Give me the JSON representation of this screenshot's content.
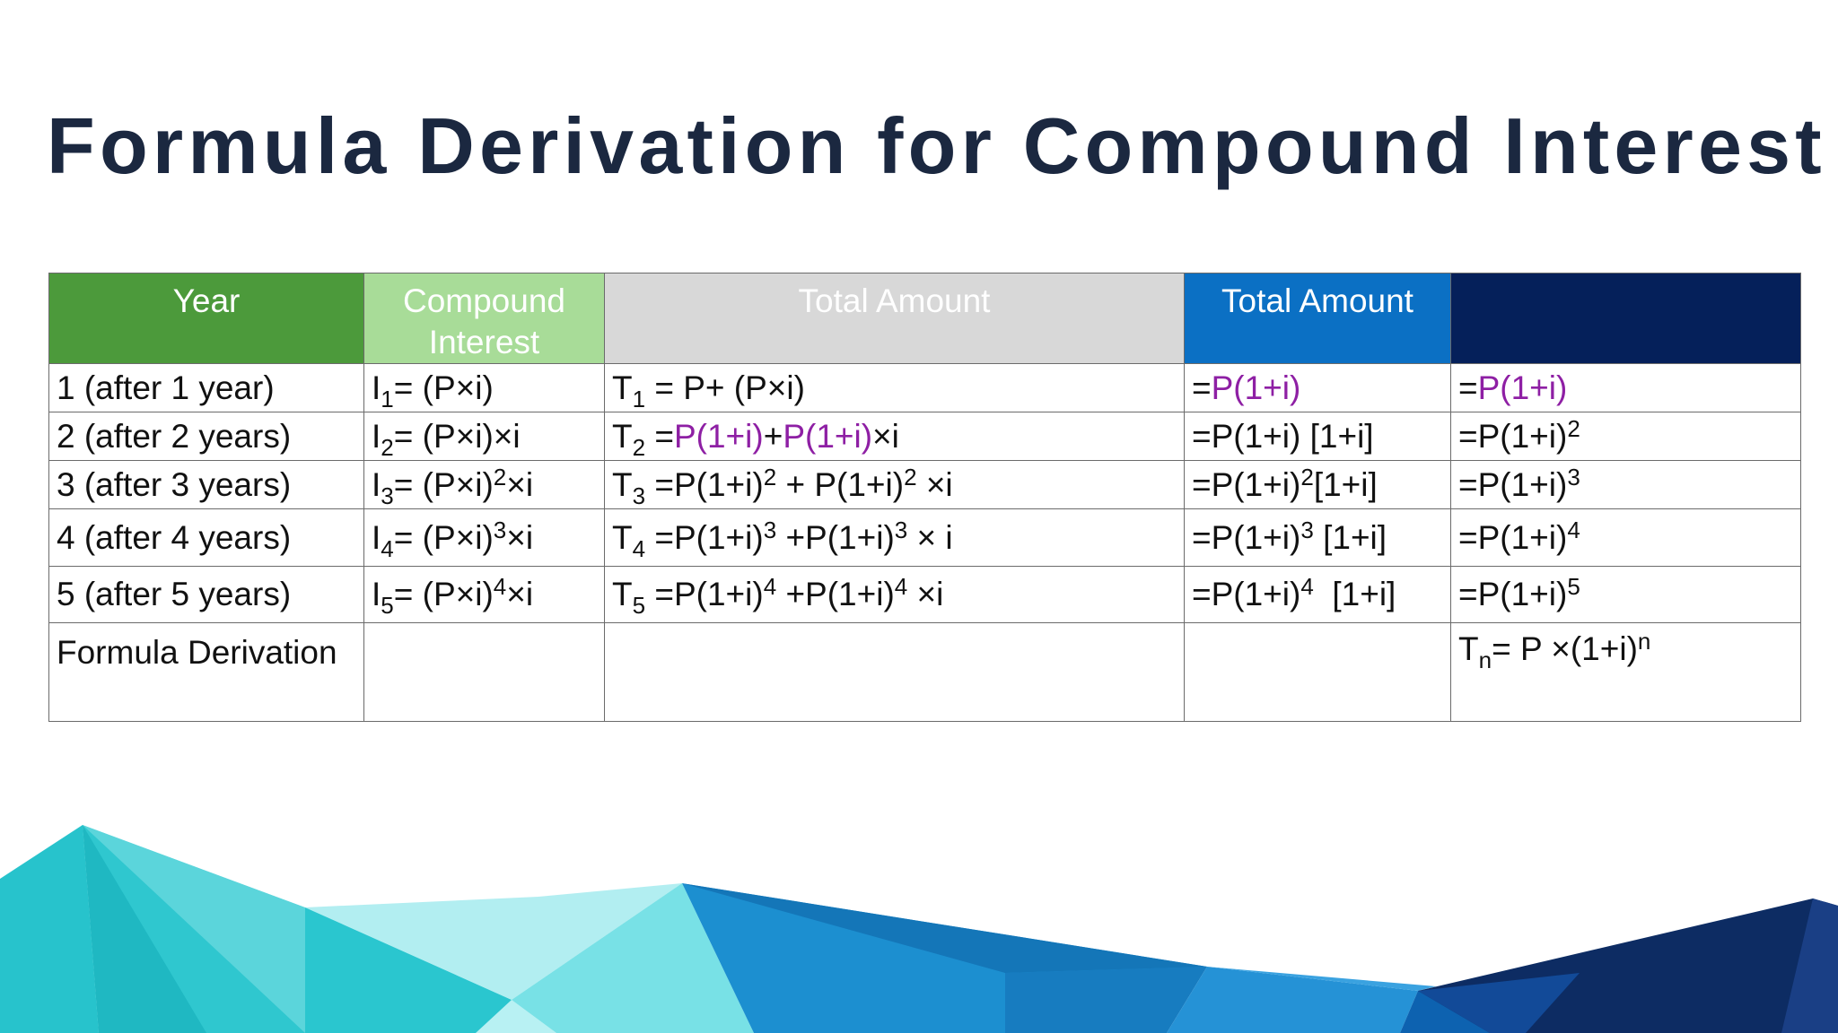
{
  "title": "Formula Derivation for Compound Interest",
  "headers": {
    "year": "Year",
    "compound_interest": "Compound Interest",
    "total_amount_1": "Total Amount",
    "total_amount_2": "Total Amount",
    "last": ""
  },
  "rows": [
    {
      "year": "1 (after 1 year)",
      "ci": {
        "pre": "I",
        "sub": "1",
        "rest": "= (P×i)"
      },
      "total": {
        "pre": "T",
        "sub": "1",
        "rest": " = P+ (P×i)"
      },
      "t2": {
        "pre": "=",
        "purple": "P(1+i)"
      },
      "t3": {
        "pre": "=",
        "purple": "P(1+i)"
      }
    },
    {
      "year": "2 (after 2 years)",
      "ci": {
        "pre": "I",
        "sub": "2",
        "rest": "= (P×i)×i"
      },
      "total": {
        "pre": "T",
        "sub": "2",
        "eq": " =",
        "p1": "P(1+i)",
        "plus": "+",
        "p2": "P(1+i)",
        "tail": "×i"
      },
      "t2": "=P(1+i) [1+i]",
      "t3": {
        "base": "=P(1+i)",
        "sup": "2"
      }
    },
    {
      "year": "3 (after 3 years)",
      "ci": {
        "pre": "I",
        "sub": "3",
        "rest": "= (P×i)",
        "sup": "2",
        "tail": "×i"
      },
      "total": {
        "pre": "T",
        "sub": "3",
        "a": " =P(1+i)",
        "s1": "2",
        "b": " + P(1+i)",
        "s2": "2",
        "c": " ×i"
      },
      "t2": {
        "base": "=P(1+i)",
        "sup": "2",
        "tail": "[1+i]"
      },
      "t3": {
        "base": "=P(1+i)",
        "sup": "3"
      }
    },
    {
      "year": "4 (after 4 years)",
      "ci": {
        "pre": "I",
        "sub": "4",
        "rest": "= (P×i)",
        "sup": "3",
        "tail": "×i"
      },
      "total": {
        "pre": "T",
        "sub": "4",
        "a": " =P(1+i)",
        "s1": "3",
        "b": " +P(1+i)",
        "s2": "3",
        "c": " × i"
      },
      "t2": {
        "base": "=P(1+i)",
        "sup": "3",
        "tail": " [1+i]"
      },
      "t3": {
        "base": "=P(1+i)",
        "sup": "4"
      }
    },
    {
      "year": "5 (after 5 years)",
      "ci": {
        "pre": "I",
        "sub": "5",
        "rest": "= (P×i)",
        "sup": "4",
        "tail": "×i"
      },
      "total": {
        "pre": "T",
        "sub": "5",
        "a": " =P(1+i)",
        "s1": "4",
        "b": " +P(1+i)",
        "s2": "4",
        "c": " ×i"
      },
      "t2": {
        "base": "=P(1+i)",
        "sup": "4",
        "tail": "  [1+i]"
      },
      "t3": {
        "base": "=P(1+i)",
        "sup": "5"
      }
    }
  ],
  "formula_row": {
    "label": "Formula Derivation",
    "result": {
      "pre": "T",
      "sub": "n",
      "mid": "= P ×(1+i)",
      "sup": "n"
    }
  },
  "colors": {
    "title": "#1b2840",
    "year_header": "#4c9a3b",
    "ci_header": "#a8dc98",
    "total1_header": "#d8d8d8",
    "total2_header": "#0b70c4",
    "last_header": "#05205a",
    "purple_text": "#8e1fa4",
    "red_text": "#ee1c1c"
  }
}
